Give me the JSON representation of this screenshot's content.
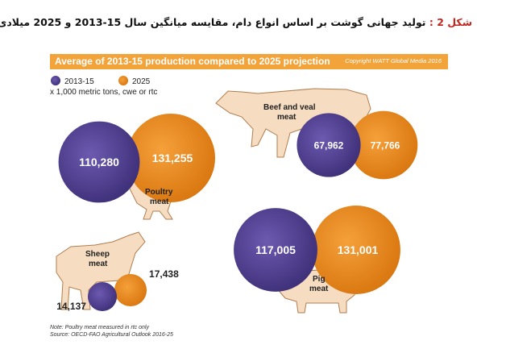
{
  "caption": {
    "label": "شکل 2 :",
    "text": "تولید جهانی گوشت  بر اساس انواع دام، مقایسه میانگین سال 15-2013 و 2025 میلادی"
  },
  "banner": {
    "title": "Average of 2013-15 production compared to 2025 projection",
    "copyright": "Copyright WATT Global Media 2016"
  },
  "legend": {
    "items": [
      "2013-15",
      "2025"
    ],
    "units": "x 1,000 metric tons, cwe or rtc"
  },
  "colors": {
    "s2013": "#52408f",
    "s2025": "#ee8b1c",
    "banner": "#f2a43a"
  },
  "chart_data": {
    "type": "bubble",
    "series": [
      {
        "name": "2013-15",
        "values": [
          110280,
          67962,
          14137,
          117005
        ]
      },
      {
        "name": "2025",
        "values": [
          131255,
          77766,
          17438,
          131001
        ]
      }
    ],
    "categories": [
      "Poultry meat",
      "Beef and veal meat",
      "Sheep meat",
      "Pig meat"
    ],
    "value_labels": {
      "2013-15": [
        "110,280",
        "67,962",
        "14,137",
        "117,005"
      ],
      "2025": [
        "131,255",
        "77,766",
        "17,438",
        "131,001"
      ]
    }
  },
  "notes": {
    "line1": "Note: Poultry meat measured in rtc only",
    "line2": "Source: OECD-FAO Agricultural Outlook 2016-25"
  }
}
